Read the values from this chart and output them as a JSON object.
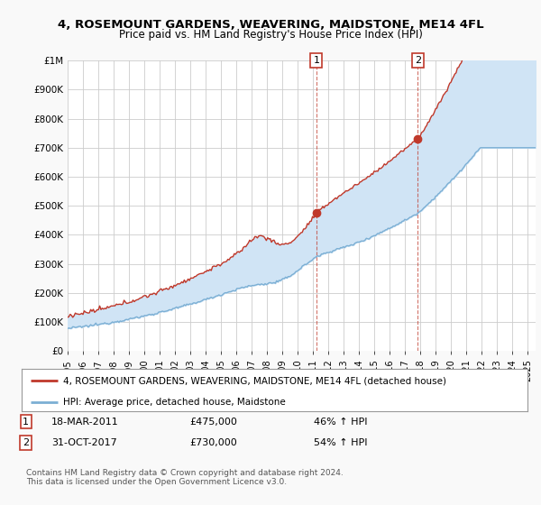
{
  "title": "4, ROSEMOUNT GARDENS, WEAVERING, MAIDSTONE, ME14 4FL",
  "subtitle": "Price paid vs. HM Land Registry's House Price Index (HPI)",
  "hpi_label": "HPI: Average price, detached house, Maidstone",
  "property_label": "4, ROSEMOUNT GARDENS, WEAVERING, MAIDSTONE, ME14 4FL (detached house)",
  "hpi_color": "#7bafd4",
  "hpi_fill_color": "#d0e4f5",
  "property_color": "#c0392b",
  "sale1_date": "18-MAR-2011",
  "sale1_price": 475000,
  "sale1_pct": "46% ↑ HPI",
  "sale2_date": "31-OCT-2017",
  "sale2_price": 730000,
  "sale2_pct": "54% ↑ HPI",
  "sale1_x": 2011.21,
  "sale2_x": 2017.83,
  "xmin": 1995.0,
  "xmax": 2025.5,
  "ymin": 0,
  "ymax": 1000000,
  "yticks": [
    0,
    100000,
    200000,
    300000,
    400000,
    500000,
    600000,
    700000,
    800000,
    900000,
    1000000
  ],
  "ytick_labels": [
    "£0",
    "£100K",
    "£200K",
    "£300K",
    "£400K",
    "£500K",
    "£600K",
    "£700K",
    "£800K",
    "£900K",
    "£1M"
  ],
  "background_color": "#f9f9f9",
  "plot_bg_color": "#ffffff",
  "copyright": "Contains HM Land Registry data © Crown copyright and database right 2024.\nThis data is licensed under the Open Government Licence v3.0."
}
